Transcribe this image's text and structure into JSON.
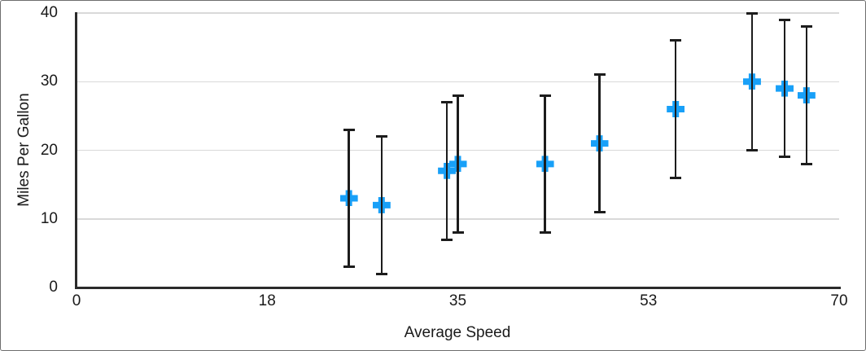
{
  "chart_data": {
    "type": "scatter",
    "title": "",
    "xlabel": "Average Speed",
    "ylabel": "Miles Per Gallon",
    "xlim": [
      0,
      70
    ],
    "ylim": [
      0,
      40
    ],
    "x_tick_labels": [
      "0",
      "18",
      "35",
      "53",
      "70"
    ],
    "y_ticks": [
      0,
      10,
      20,
      30,
      40
    ],
    "y_tick_labels": [
      "0",
      "10",
      "20",
      "30",
      "40"
    ],
    "grid": "horizontal",
    "legend_position": "none",
    "marker_style": "plus",
    "error_bars": "y, symmetric, value 10",
    "series": [
      {
        "name": "Miles Per Gallon",
        "points": [
          {
            "x": 25,
            "y": 13,
            "error_plus": 10,
            "error_minus": 10
          },
          {
            "x": 28,
            "y": 12,
            "error_plus": 10,
            "error_minus": 10
          },
          {
            "x": 34,
            "y": 17,
            "error_plus": 10,
            "error_minus": 10
          },
          {
            "x": 35,
            "y": 18,
            "error_plus": 10,
            "error_minus": 10
          },
          {
            "x": 43,
            "y": 18,
            "error_plus": 10,
            "error_minus": 10
          },
          {
            "x": 48,
            "y": 21,
            "error_plus": 10,
            "error_minus": 10
          },
          {
            "x": 55,
            "y": 26,
            "error_plus": 10,
            "error_minus": 10
          },
          {
            "x": 62,
            "y": 30,
            "error_plus": 10,
            "error_minus": 10
          },
          {
            "x": 65,
            "y": 29,
            "error_plus": 10,
            "error_minus": 10
          },
          {
            "x": 67,
            "y": 28,
            "error_plus": 10,
            "error_minus": 10
          }
        ]
      }
    ],
    "colors": {
      "marker": "#18a0f8",
      "error_bar": "#1c1c1c",
      "gridline": "#d9d9d9",
      "axis": "#2b2b2b",
      "text": "#1a1a1a",
      "background": "#ffffff",
      "frame_border": "#6e6e6e"
    }
  }
}
